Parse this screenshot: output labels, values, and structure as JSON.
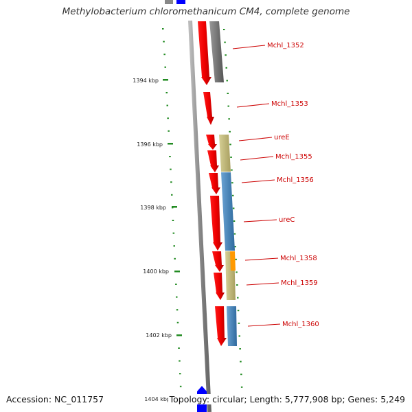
{
  "title": "Methylobacterium chloromethanicum CM4, complete genome",
  "accession": "Accession: NC_011757",
  "topology": "Topology: circular; Length: 5,777,908 bp; Genes: 5,249",
  "scale_labels": [
    "1394 kbp",
    "1396 kbp",
    "1398 kbp",
    "1400 kbp",
    "1402 kbp",
    "1404 kbp"
  ],
  "gene_labels": [
    "Mchl_1352",
    "Mchl_1353",
    "ureE",
    "Mchl_1355",
    "Mchl_1356",
    "ureC",
    "Mchl_1358",
    "Mchl_1359",
    "Mchl_1360"
  ],
  "colors": {
    "cds": "#ff0000",
    "gray_feature": "#777777",
    "khaki_feature": "#c8c080",
    "blue_feature": "#4a88c0",
    "orange_feature": "#ff9900",
    "tick": "#228b22",
    "backbone": "#999999",
    "label": "#cc0000",
    "start_marker": "#0000ff"
  }
}
